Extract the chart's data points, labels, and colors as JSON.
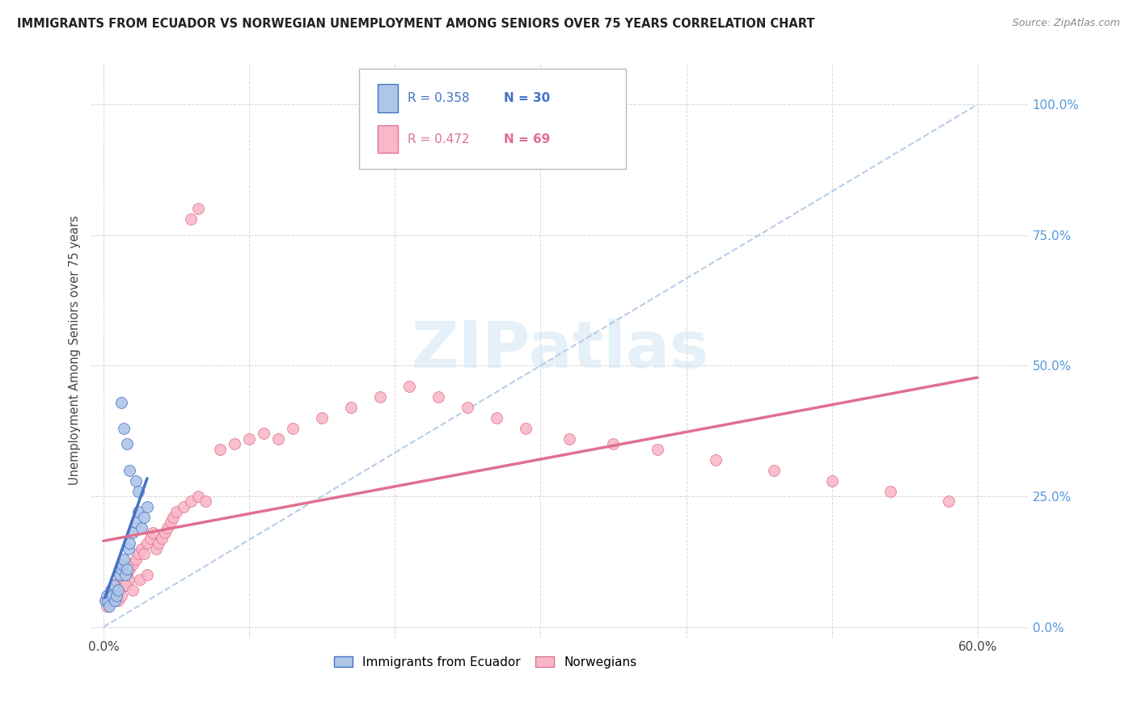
{
  "title": "IMMIGRANTS FROM ECUADOR VS NORWEGIAN UNEMPLOYMENT AMONG SENIORS OVER 75 YEARS CORRELATION CHART",
  "source": "Source: ZipAtlas.com",
  "ylabel": "Unemployment Among Seniors over 75 years",
  "legend_r1": "R = 0.358",
  "legend_n1": "N = 30",
  "legend_r2": "R = 0.472",
  "legend_n2": "N = 69",
  "ecuador_face_color": "#aec6e8",
  "norwegian_face_color": "#f9b8c8",
  "ecuador_edge_color": "#4472c4",
  "norwegian_edge_color": "#e07090",
  "ecuador_line_color": "#4472c4",
  "norwegian_line_color": "#e07090",
  "dashed_line_color": "#b0c8e8",
  "watermark_color": "#d0e4f4",
  "ecuador_x": [
    0.001,
    0.002,
    0.003,
    0.004,
    0.005,
    0.006,
    0.007,
    0.008,
    0.009,
    0.01,
    0.011,
    0.012,
    0.013,
    0.014,
    0.015,
    0.016,
    0.017,
    0.018,
    0.02,
    0.022,
    0.024,
    0.026,
    0.028,
    0.03,
    0.012,
    0.014,
    0.016,
    0.018,
    0.022,
    0.024
  ],
  "ecuador_y": [
    0.05,
    0.06,
    0.05,
    0.04,
    0.07,
    0.06,
    0.08,
    0.05,
    0.06,
    0.07,
    0.1,
    0.11,
    0.12,
    0.13,
    0.1,
    0.11,
    0.15,
    0.16,
    0.18,
    0.2,
    0.22,
    0.19,
    0.21,
    0.23,
    0.43,
    0.38,
    0.35,
    0.3,
    0.28,
    0.26
  ],
  "norwegian_x": [
    0.002,
    0.003,
    0.004,
    0.005,
    0.006,
    0.007,
    0.008,
    0.009,
    0.01,
    0.011,
    0.012,
    0.013,
    0.014,
    0.015,
    0.016,
    0.017,
    0.018,
    0.02,
    0.022,
    0.024,
    0.026,
    0.028,
    0.03,
    0.032,
    0.034,
    0.036,
    0.038,
    0.04,
    0.042,
    0.044,
    0.046,
    0.048,
    0.05,
    0.055,
    0.06,
    0.065,
    0.07,
    0.08,
    0.09,
    0.1,
    0.11,
    0.12,
    0.13,
    0.15,
    0.17,
    0.19,
    0.21,
    0.23,
    0.25,
    0.27,
    0.29,
    0.32,
    0.35,
    0.38,
    0.42,
    0.46,
    0.5,
    0.54,
    0.58,
    0.005,
    0.008,
    0.01,
    0.012,
    0.015,
    0.02,
    0.025,
    0.03,
    0.06,
    0.065
  ],
  "norwegian_y": [
    0.04,
    0.05,
    0.06,
    0.05,
    0.07,
    0.06,
    0.08,
    0.07,
    0.08,
    0.09,
    0.1,
    0.11,
    0.09,
    0.08,
    0.1,
    0.09,
    0.11,
    0.12,
    0.13,
    0.14,
    0.15,
    0.14,
    0.16,
    0.17,
    0.18,
    0.15,
    0.16,
    0.17,
    0.18,
    0.19,
    0.2,
    0.21,
    0.22,
    0.23,
    0.24,
    0.25,
    0.24,
    0.34,
    0.35,
    0.36,
    0.37,
    0.36,
    0.38,
    0.4,
    0.42,
    0.44,
    0.46,
    0.44,
    0.42,
    0.4,
    0.38,
    0.36,
    0.35,
    0.34,
    0.32,
    0.3,
    0.28,
    0.26,
    0.24,
    0.06,
    0.07,
    0.05,
    0.06,
    0.08,
    0.07,
    0.09,
    0.1,
    0.78,
    0.8
  ],
  "xlim": [
    0.0,
    0.62
  ],
  "ylim": [
    0.0,
    1.05
  ],
  "xticks": [
    0.0,
    0.1,
    0.2,
    0.3,
    0.4,
    0.5,
    0.6
  ],
  "xtick_labels": [
    "0.0%",
    "",
    "",
    "",
    "",
    "",
    "60.0%"
  ],
  "yticks": [
    0.0,
    0.25,
    0.5,
    0.75,
    1.0
  ],
  "ytick_labels": [
    "0.0%",
    "25.0%",
    "50.0%",
    "75.0%",
    "100.0%"
  ]
}
